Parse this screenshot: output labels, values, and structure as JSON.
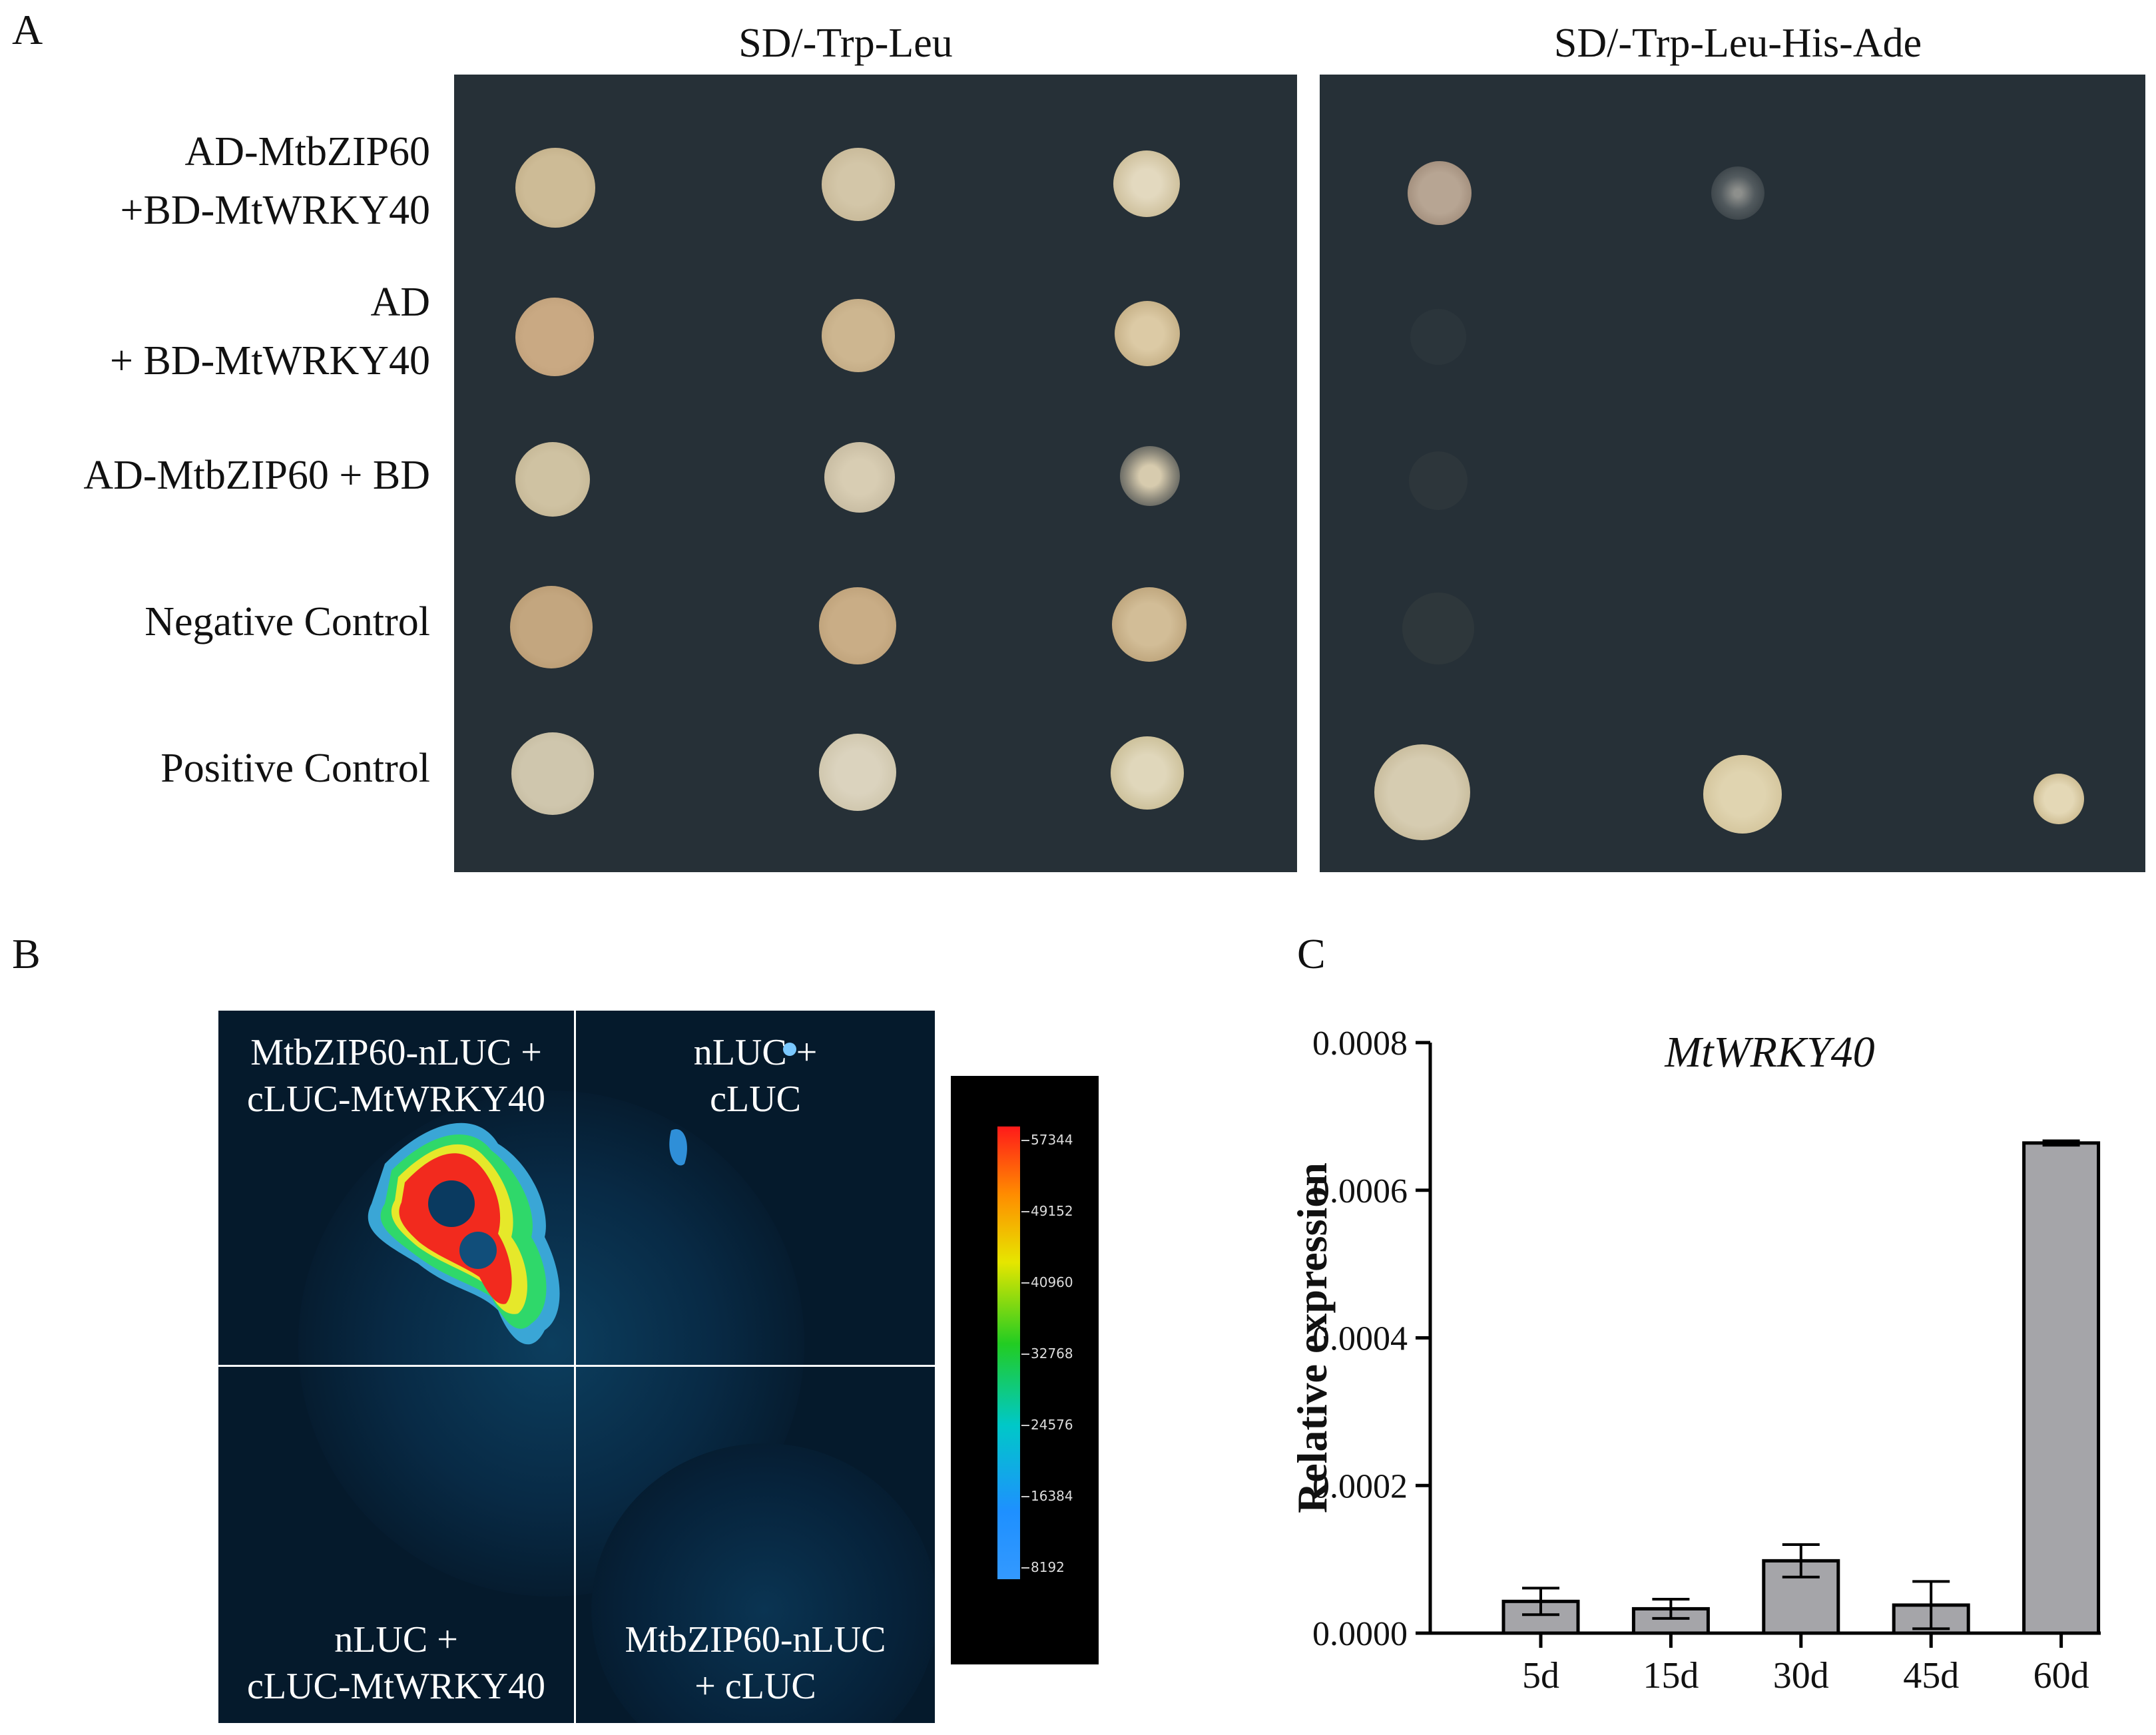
{
  "panel_a": {
    "letter": "A",
    "conditions": [
      "SD/-Trp-Leu",
      "SD/-Trp-Leu-His-Ade"
    ],
    "rows": [
      [
        "AD-MtbZIP60",
        "+BD-MtWRKY40"
      ],
      [
        "AD",
        "+ BD-MtWRKY40"
      ],
      [
        "AD-MtbZIP60 + BD"
      ],
      [
        "Negative Control"
      ],
      [
        "Positive Control"
      ]
    ]
  },
  "panel_b": {
    "letter": "B",
    "cells": [
      [
        "MtbZIP60-nLUC +",
        "cLUC-MtWRKY40"
      ],
      [
        "nLUC +",
        "cLUC"
      ],
      [
        "nLUC +",
        "cLUC-MtWRKY40"
      ],
      [
        "MtbZIP60-nLUC",
        "+ cLUC"
      ]
    ],
    "scale_ticks": [
      "57344",
      "49152",
      "40960",
      "32768",
      "24576",
      "16384",
      "8192"
    ]
  },
  "panel_c": {
    "letter": "C"
  },
  "chart_data": {
    "type": "bar",
    "title": "MtWRKY40",
    "xlabel": "",
    "ylabel": "Relative expression",
    "categories": [
      "5d",
      "15d",
      "30d",
      "45d",
      "60d"
    ],
    "values": [
      4.3e-05,
      3.3e-05,
      9.8e-05,
      3.8e-05,
      0.000664
    ],
    "errors": [
      1.8e-05,
      1.3e-05,
      2.2e-05,
      3.2e-05,
      3e-06
    ],
    "ylim": [
      0,
      0.0008
    ],
    "yticks": [
      "0.0000",
      "0.0002",
      "0.0004",
      "0.0006",
      "0.0008"
    ],
    "bar_color": "#a5a5a9",
    "grid": false
  }
}
